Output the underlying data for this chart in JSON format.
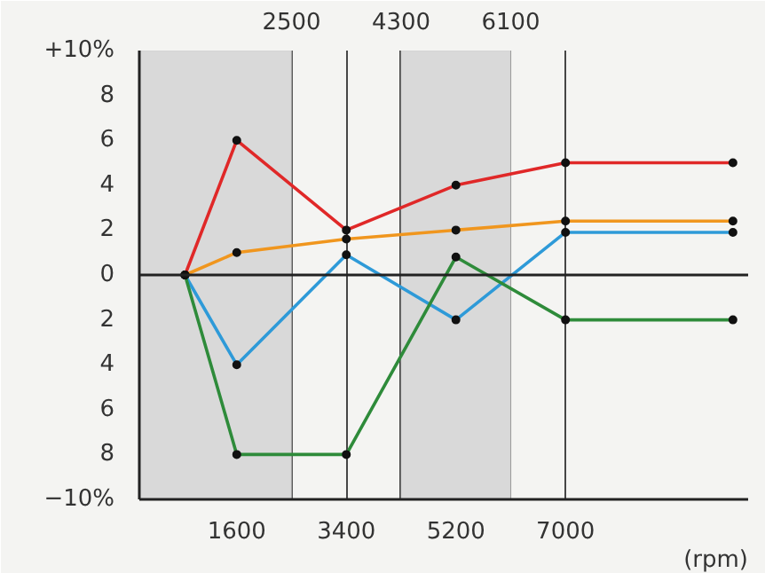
{
  "chart_data": {
    "type": "line",
    "x": [
      750,
      1600,
      3400,
      5200,
      7000,
      9750
    ],
    "series": [
      {
        "color": "#e02828",
        "values": [
          0,
          6,
          2,
          4,
          5,
          5
        ]
      },
      {
        "color": "#f0961e",
        "values": [
          0,
          1,
          1.6,
          2,
          2.4,
          2.4
        ]
      },
      {
        "color": "#2e9ad8",
        "values": [
          0,
          -4,
          0.9,
          -2,
          1.9,
          1.9
        ]
      },
      {
        "color": "#2e8b3a",
        "values": [
          0,
          -8,
          -8,
          0.8,
          -2,
          -2
        ]
      }
    ],
    "xlabel": "(rpm)",
    "xlim": [
      0,
      10000
    ],
    "xticks": [
      1600,
      3400,
      5200,
      7000
    ],
    "x2lim": [
      0,
      10000
    ],
    "x2ticks": [
      2500,
      4300,
      6100
    ],
    "ylim": [
      -10,
      10
    ],
    "yticks": [
      {
        "value": 10,
        "label": "+10%"
      },
      8,
      6,
      4,
      2,
      0,
      {
        "value": -2,
        "label": "2"
      },
      {
        "value": -4,
        "label": "4"
      },
      {
        "value": -6,
        "label": "6"
      },
      {
        "value": -8,
        "label": "8"
      },
      {
        "value": -10,
        "label": "−10%"
      }
    ],
    "grid": "x",
    "marker": "circle",
    "line_style": "solid",
    "ref_lines": [
      {
        "axis": "y",
        "value": 0,
        "color": "#222222"
      }
    ],
    "bands": [
      {
        "axis": "x",
        "from": 0,
        "to": 2500,
        "color": "#d9d9d9"
      },
      {
        "axis": "x",
        "from": 4300,
        "to": 6100,
        "color": "#d9d9d9"
      }
    ]
  }
}
